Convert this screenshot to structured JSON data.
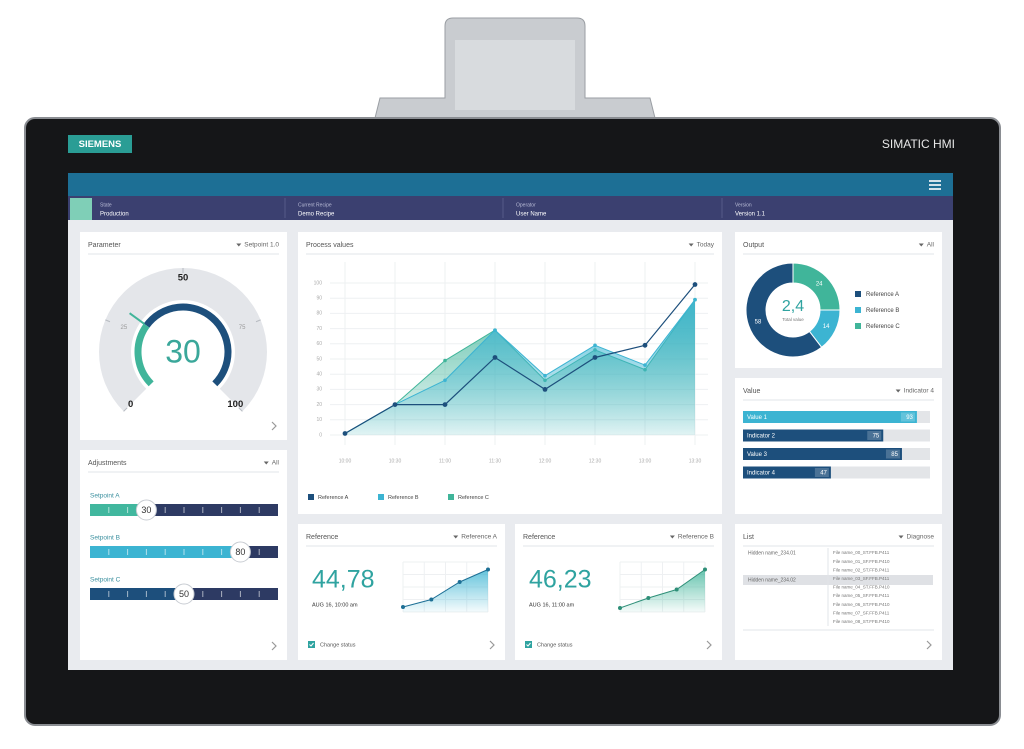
{
  "device": {
    "brand": "SIEMENS",
    "model": "SIMATIC HMI"
  },
  "status": [
    {
      "label": "State",
      "value": "Production"
    },
    {
      "label": "Current Recipe",
      "value": "Demo Recipe"
    },
    {
      "label": "Operator",
      "value": "User Name"
    },
    {
      "label": "Version",
      "value": "Version 1.1"
    }
  ],
  "parameter": {
    "title": "Parameter",
    "filter": "Setpoint 1.0",
    "chart_data": {
      "type": "gauge",
      "value": 30,
      "ylim": [
        0,
        100
      ],
      "yticks": [
        0,
        25,
        50,
        75,
        100
      ]
    }
  },
  "adjustments": {
    "title": "Adjustments",
    "filter": "All",
    "xlim": [
      0,
      100
    ],
    "sliders": [
      {
        "name": "Setpoint A",
        "value": 30,
        "color": "#41b79e"
      },
      {
        "name": "Setpoint B",
        "value": 80,
        "color": "#3cb4d2"
      },
      {
        "name": "Setpoint C",
        "value": 50,
        "color": "#1d4f7c"
      }
    ]
  },
  "process_values": {
    "title": "Process values",
    "filter": "Today",
    "chart_data": {
      "type": "area",
      "categories": [
        "10:00",
        "10:30",
        "11:00",
        "11:30",
        "12:00",
        "12:30",
        "13:00",
        "13:30"
      ],
      "series": [
        {
          "name": "Reference A",
          "color": "#1d4f7c",
          "area": false,
          "values": [
            1,
            20,
            20,
            51,
            30,
            51,
            59,
            99
          ]
        },
        {
          "name": "Reference B",
          "color": "#3cb4d2",
          "area": true,
          "values": [
            1,
            20,
            36,
            69,
            39,
            59,
            46,
            89
          ]
        },
        {
          "name": "Reference C",
          "color": "#40b59a",
          "area": true,
          "values": [
            1,
            20,
            49,
            69,
            36,
            56,
            43,
            89
          ]
        }
      ],
      "ylim": [
        0,
        100
      ],
      "yticks": [
        0,
        10,
        20,
        30,
        40,
        50,
        60,
        70,
        80,
        90,
        100
      ],
      "grid": true
    }
  },
  "output": {
    "title": "Output",
    "filter": "All",
    "chart_data": {
      "type": "donut",
      "center_value": "2,4",
      "center_label": "Total value",
      "categories": [
        "Reference A",
        "Reference B",
        "Reference C"
      ],
      "values": [
        58,
        14,
        24
      ],
      "colors": [
        "#1d4f7c",
        "#3cb4d2",
        "#40b59a"
      ]
    }
  },
  "value_panel": {
    "title": "Value",
    "filter": "Indicator 4",
    "chart_data": {
      "type": "bar",
      "categories": [
        "Value 1",
        "Indicator 2",
        "Value 3",
        "Indicator 4"
      ],
      "values": [
        93,
        75,
        85,
        47
      ],
      "colors": [
        "#3cb4d2",
        "#1d4f7c",
        "#1d4f7c",
        "#1d4f7c"
      ],
      "xlim": [
        0,
        100
      ]
    }
  },
  "references": [
    {
      "title": "Reference",
      "filter": "Reference A",
      "value": "44,78",
      "time": "AUG 16, 10:00 am",
      "status": "Change status",
      "chart_data": {
        "type": "area",
        "values": [
          10,
          25,
          60,
          85
        ],
        "color": "#3cb4d2",
        "ylim": [
          0,
          100
        ]
      }
    },
    {
      "title": "Reference",
      "filter": "Reference B",
      "value": "46,23",
      "time": "AUG 16, 11:00 am",
      "status": "Change status",
      "chart_data": {
        "type": "area",
        "values": [
          8,
          28,
          45,
          85
        ],
        "color": "#40b59a",
        "ylim": [
          0,
          100
        ]
      }
    }
  ],
  "list": {
    "title": "List",
    "filter": "Diagnose",
    "names": [
      "Hidden name_234.01",
      "Hidden name_234.02"
    ],
    "files": [
      "File name_00_ST.FFB.P411",
      "File name_01_SF.FFB.P410",
      "File name_02_ST.FFB.P411",
      "File name_03_SF.FFB.P411",
      "File name_04_ST.FFB.P410",
      "File name_05_SF.FFB.P411",
      "File name_06_ST.FFB.P410",
      "File name_07_SF.FFB.P411",
      "File name_08_ST.FFB.P410"
    ]
  }
}
